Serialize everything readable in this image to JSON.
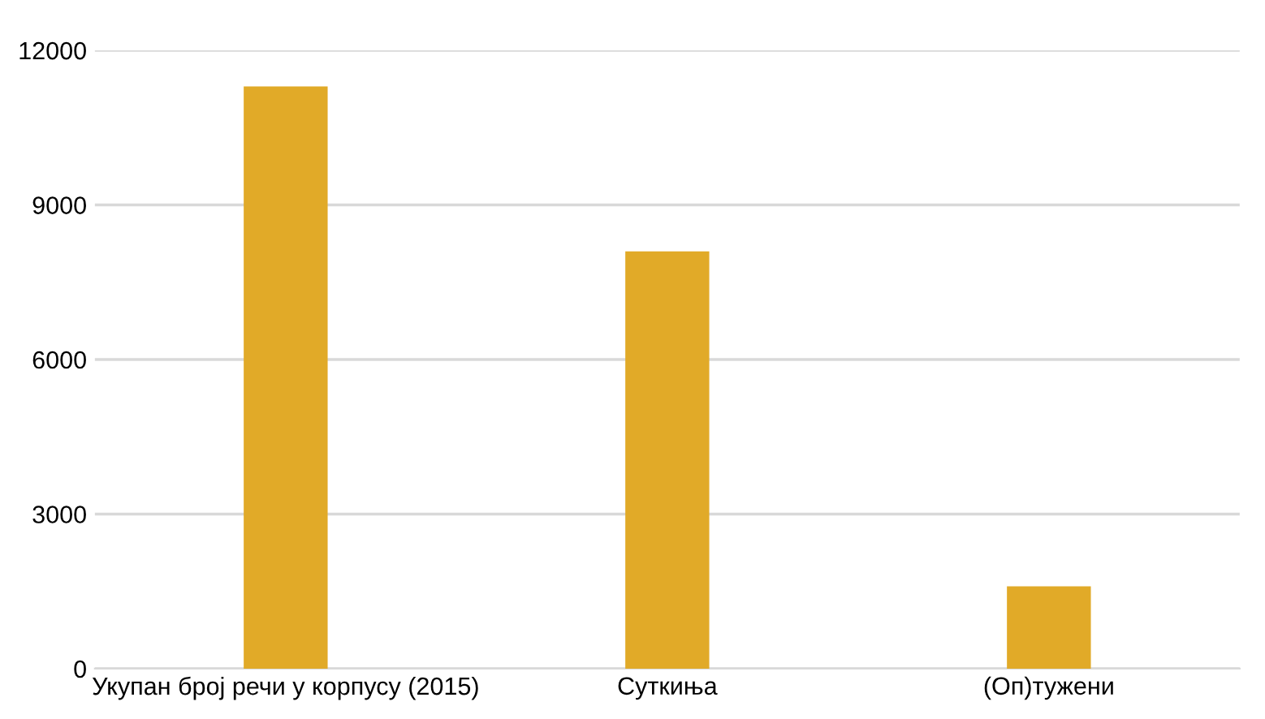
{
  "chart_data": {
    "type": "bar",
    "categories": [
      "Укупан број речи у корпусу (2015)",
      "Суткиња",
      "(Оп)тужени"
    ],
    "values": [
      11300,
      8100,
      1600
    ],
    "color": "#e1aa28",
    "ylim": [
      0,
      12000
    ],
    "yticks": [
      0,
      3000,
      6000,
      9000,
      12000
    ],
    "grid": "y"
  }
}
